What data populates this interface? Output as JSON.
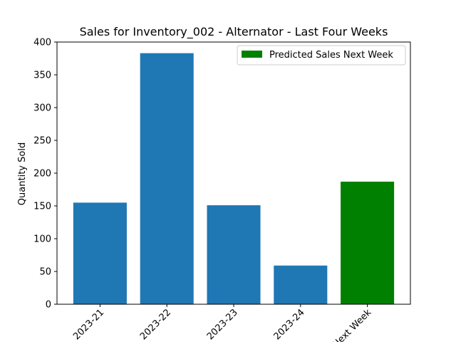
{
  "chart_data": {
    "type": "bar",
    "title": "Sales for Inventory_002 - Alternator - Last Four Weeks",
    "xlabel": "",
    "ylabel": "Quantity Sold",
    "categories": [
      "2023-21",
      "2023-22",
      "2023-23",
      "2023-24",
      "Next Week"
    ],
    "values": [
      155,
      383,
      151,
      59,
      187
    ],
    "bar_colors": [
      "#1f77b4",
      "#1f77b4",
      "#1f77b4",
      "#1f77b4",
      "#008000"
    ],
    "ylim": [
      0,
      400
    ],
    "yticks": [
      0,
      50,
      100,
      150,
      200,
      250,
      300,
      350,
      400
    ],
    "grid": false,
    "legend": {
      "placement": "top-right",
      "entries": [
        {
          "label": "Predicted Sales Next Week",
          "color": "#008000"
        }
      ]
    }
  }
}
